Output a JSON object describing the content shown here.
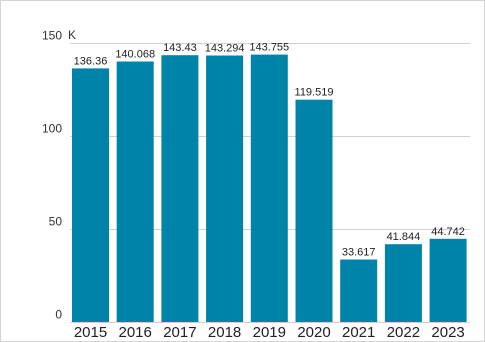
{
  "chart_data": {
    "type": "bar",
    "categories": [
      "2015",
      "2016",
      "2017",
      "2018",
      "2019",
      "2020",
      "2021",
      "2022",
      "2023"
    ],
    "values": [
      136.36,
      140.068,
      143.43,
      143.294,
      143.755,
      119.519,
      33.617,
      41.844,
      44.742
    ],
    "data_labels": [
      "136.36",
      "140.068",
      "143.43",
      "143.294",
      "143.755",
      "119.519",
      "33.617",
      "41.844",
      "44.742"
    ],
    "title": "",
    "xlabel": "",
    "ylabel": "",
    "y_unit": "K",
    "ylim": [
      0,
      150
    ],
    "y_ticks": [
      0,
      50,
      100,
      150
    ],
    "grid": true,
    "legend": "none",
    "bar_color": "#0083a8"
  }
}
